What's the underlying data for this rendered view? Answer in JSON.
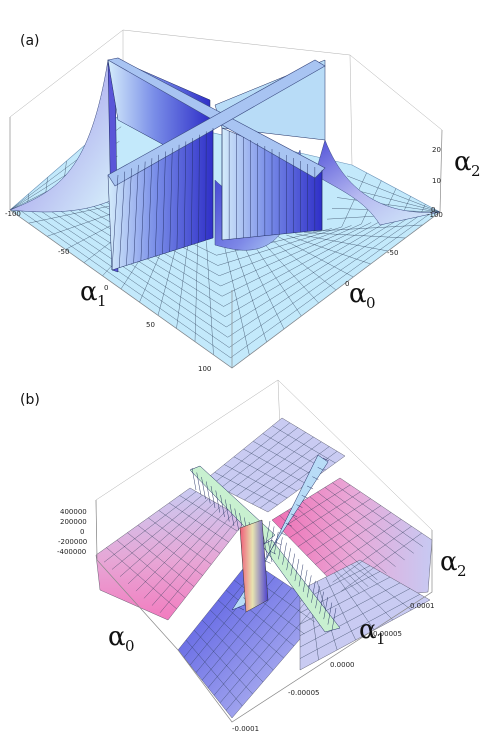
{
  "chart_data": [
    {
      "type": "surface3d",
      "panel_label": "(a)",
      "axes": {
        "x": {
          "symbol": "α",
          "subscript": "1",
          "ticks": [
            "-100",
            "-50",
            "0",
            "50",
            "100"
          ],
          "range": [
            -100,
            100
          ]
        },
        "y": {
          "symbol": "α",
          "subscript": "0",
          "ticks": [
            "-100",
            "-50",
            "0"
          ],
          "range": [
            -100,
            100
          ]
        },
        "z": {
          "symbol": "α",
          "subscript": "2",
          "ticks": [
            "0",
            "10",
            "20"
          ],
          "range": [
            0,
            25
          ]
        }
      },
      "colors": {
        "surface_light": "#bfe8fb",
        "surface_mid": "#8fb6ee",
        "surface_dark": "#3d3fd6"
      }
    },
    {
      "type": "surface3d",
      "panel_label": "(b)",
      "axes": {
        "x": {
          "symbol": "α",
          "subscript": "1",
          "ticks": [
            "-0.00005",
            "0.0000",
            "0.00005",
            "0.0001"
          ],
          "range": [
            -0.0001,
            0.0001
          ]
        },
        "y": {
          "symbol": "α",
          "subscript": "0",
          "ticks": [
            "-0.0001",
            "-0.00005",
            "0.0000",
            "0.00005",
            "0.0001"
          ],
          "range": [
            -0.0001,
            0.0001
          ]
        },
        "y_back_ticks": [
          "-0.0001",
          "-0.00005",
          "0.0000",
          "0.00005",
          "0.0001"
        ],
        "z": {
          "symbol": "α",
          "subscript": "2",
          "ticks": [
            "400000",
            "200000",
            "0",
            "-200000",
            "-400000"
          ],
          "range": [
            -400000,
            400000
          ]
        }
      },
      "colors": {
        "surface_light": "#c9cbf2",
        "surface_pink": "#f08fc4",
        "surface_blue": "#5a5ee0",
        "ribbon_green": "#c8f0d0"
      }
    }
  ]
}
